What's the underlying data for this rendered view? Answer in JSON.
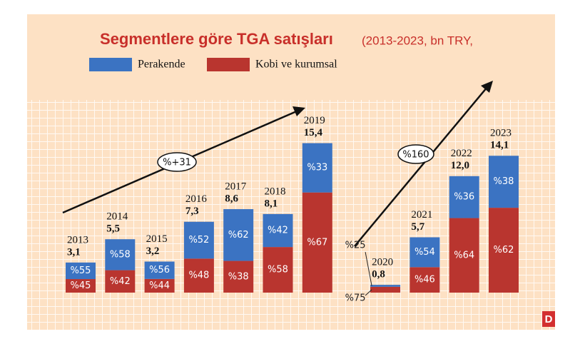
{
  "chart_data": {
    "type": "stacked_share_bar",
    "title": "Segmentlere göre TGA satışları",
    "subtitle": "(2013-2023, bn TRY,",
    "categories": [
      "2013",
      "2014",
      "2015",
      "2016",
      "2017",
      "2018",
      "2019",
      "2020",
      "2021",
      "2022",
      "2023"
    ],
    "totals": {
      "values": [
        3.1,
        5.5,
        3.2,
        7.3,
        8.6,
        8.1,
        15.4,
        0.8,
        5.7,
        12.0,
        14.1
      ],
      "value_labels": [
        "3,1",
        "5,5",
        "3,2",
        "7,3",
        "8,6",
        "8,1",
        "15,4",
        "0,8",
        "5,7",
        "12,0",
        "14,1"
      ]
    },
    "series": [
      {
        "name": "Perakende",
        "color": "#3b73c2",
        "values": [
          55,
          58,
          56,
          52,
          62,
          42,
          33,
          25,
          54,
          36,
          38
        ],
        "value_labels": [
          "%55",
          "%58",
          "%56",
          "%52",
          "%62",
          "%42",
          "%33",
          "%25",
          "%54",
          "%36",
          "%38"
        ]
      },
      {
        "name": "Kobi ve kurumsal",
        "color": "#b9352f",
        "values": [
          45,
          42,
          44,
          48,
          38,
          58,
          67,
          75,
          46,
          64,
          62
        ],
        "value_labels": [
          "%45",
          "%42",
          "%44",
          "%48",
          "%38",
          "%58",
          "%67",
          "%75",
          "%46",
          "%64",
          "%62"
        ]
      }
    ],
    "annotations": [
      "%+31",
      "%160"
    ],
    "logo": "D"
  }
}
